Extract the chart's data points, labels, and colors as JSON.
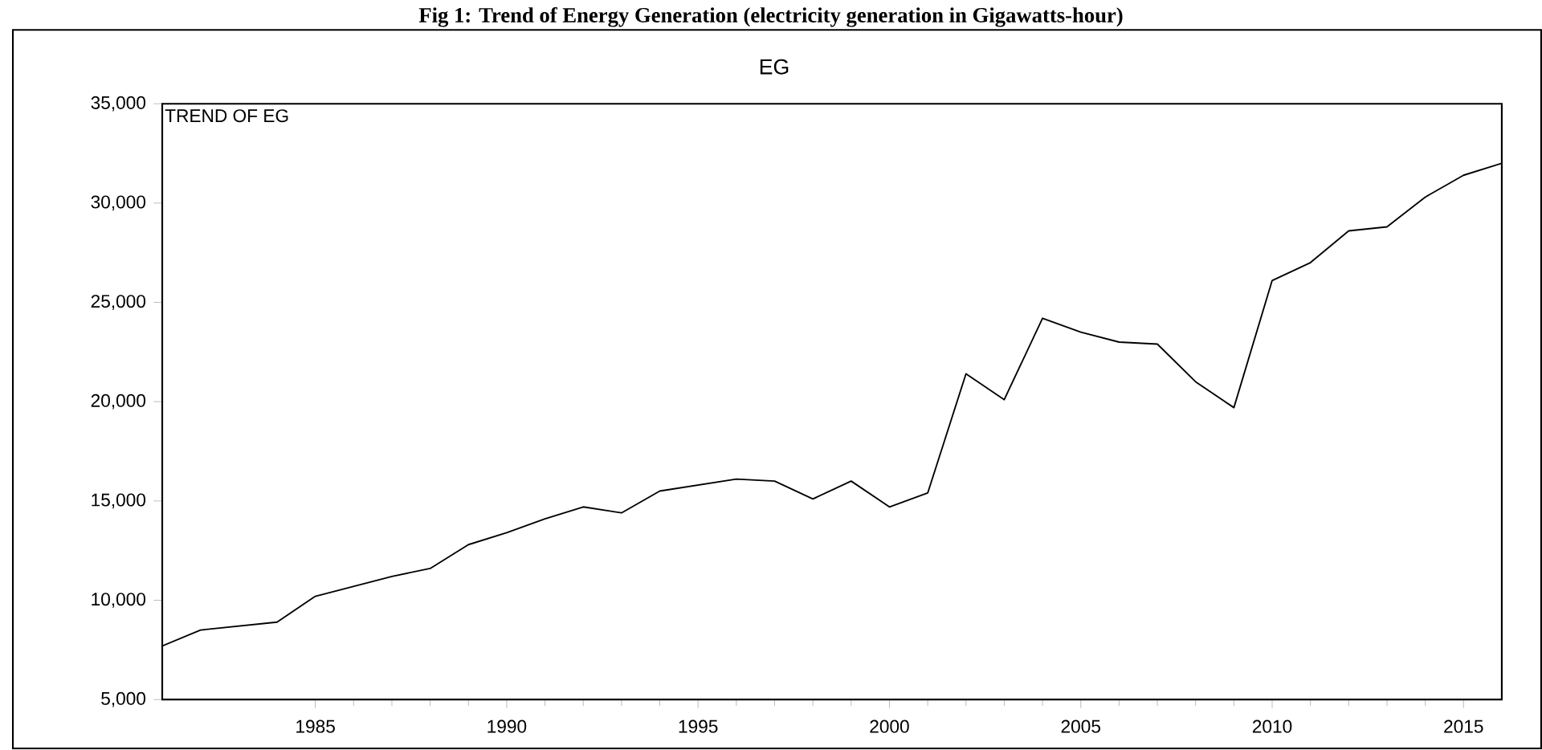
{
  "chart_data": {
    "type": "line",
    "title": "Fig 1: Trend of Energy Generation (electricity generation in Gigawatts-hour)",
    "subtitle": "EG",
    "annotations": [
      "TREND OF EG"
    ],
    "x": [
      1981,
      1982,
      1983,
      1984,
      1985,
      1986,
      1987,
      1988,
      1989,
      1990,
      1991,
      1992,
      1993,
      1994,
      1995,
      1996,
      1997,
      1998,
      1999,
      2000,
      2001,
      2002,
      2003,
      2004,
      2005,
      2006,
      2007,
      2008,
      2009,
      2010,
      2011,
      2012,
      2013,
      2014,
      2015,
      2016
    ],
    "series": [
      {
        "color": "#000000",
        "values": [
          7700,
          8500,
          8700,
          8900,
          10200,
          10700,
          11200,
          11600,
          12800,
          13400,
          14100,
          14700,
          14400,
          15500,
          15800,
          16100,
          16000,
          15100,
          16000,
          14700,
          15400,
          21400,
          20100,
          24200,
          23500,
          23000,
          22900,
          21000,
          19700,
          26100,
          27000,
          28600,
          28800,
          30300,
          31400,
          32000
        ]
      }
    ],
    "xlim": [
      1981,
      2016
    ],
    "ylim": [
      5000,
      35000
    ],
    "xticks": [
      1985,
      1990,
      1995,
      2000,
      2005,
      2010,
      2015
    ],
    "yticks": [
      {
        "value": 5000,
        "label": "5,000"
      },
      {
        "value": 10000,
        "label": "10,000"
      },
      {
        "value": 15000,
        "label": "15,000"
      },
      {
        "value": 20000,
        "label": "20,000"
      },
      {
        "value": 25000,
        "label": "25,000"
      },
      {
        "value": 30000,
        "label": "30,000"
      },
      {
        "value": 35000,
        "label": "35,000"
      }
    ],
    "marker": "none",
    "line_style": "solid"
  }
}
